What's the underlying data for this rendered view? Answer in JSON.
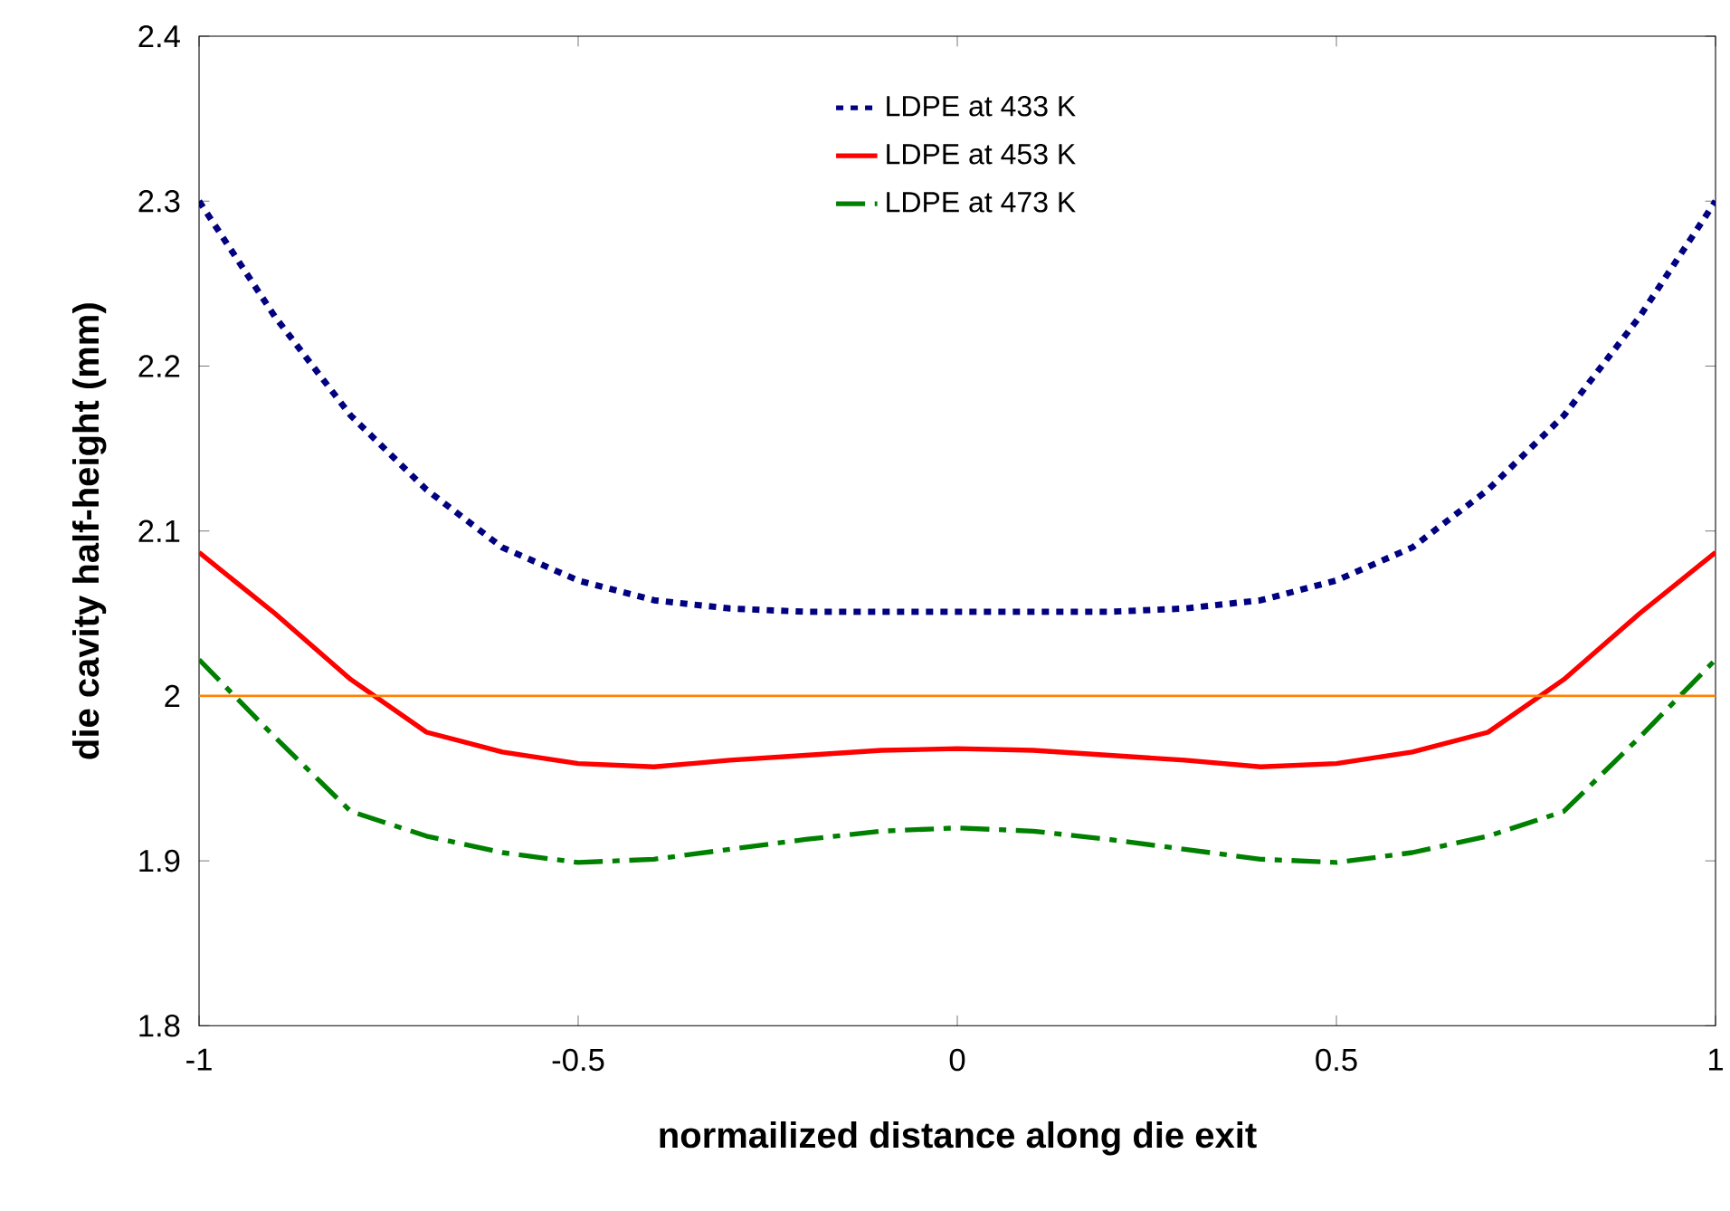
{
  "chart_data": {
    "type": "line",
    "xlabel": "normailized distance along die exit",
    "ylabel": "die cavity half-height (mm)",
    "xlim": [
      -1,
      1
    ],
    "xticks": [
      -1,
      -0.5,
      0,
      0.5,
      1
    ],
    "ylim": [
      1.8,
      2.4
    ],
    "yticks": [
      1.8,
      1.9,
      2,
      2.1,
      2.2,
      2.3,
      2.4
    ],
    "x": [
      -1,
      -0.9,
      -0.8,
      -0.7,
      -0.6,
      -0.5,
      -0.4,
      -0.3,
      -0.2,
      -0.1,
      0,
      0.1,
      0.2,
      0.3,
      0.4,
      0.5,
      0.6,
      0.7,
      0.8,
      0.9,
      1
    ],
    "series": [
      {
        "name": "LDPE at 433 K",
        "color": "#000080",
        "line_style": "dotted",
        "values": [
          2.3,
          2.23,
          2.17,
          2.125,
          2.09,
          2.07,
          2.058,
          2.053,
          2.051,
          2.051,
          2.051,
          2.051,
          2.051,
          2.053,
          2.058,
          2.07,
          2.09,
          2.125,
          2.17,
          2.23,
          2.3
        ]
      },
      {
        "name": "LDPE at 453 K",
        "color": "#ff0000",
        "line_style": "solid",
        "values": [
          2.087,
          2.05,
          2.01,
          1.978,
          1.966,
          1.959,
          1.957,
          1.961,
          1.964,
          1.967,
          1.968,
          1.967,
          1.964,
          1.961,
          1.957,
          1.959,
          1.966,
          1.978,
          2.01,
          2.05,
          2.087
        ]
      },
      {
        "name": "LDPE at 473 K",
        "color": "#008000",
        "line_style": "dashed",
        "values": [
          2.022,
          1.975,
          1.93,
          1.915,
          1.905,
          1.899,
          1.901,
          1.907,
          1.913,
          1.918,
          1.92,
          1.918,
          1.913,
          1.907,
          1.901,
          1.899,
          1.905,
          1.915,
          1.93,
          1.975,
          2.022
        ]
      }
    ],
    "ref_lines": [
      {
        "axis": "y",
        "value": 2,
        "color": "#ff8000"
      }
    ],
    "grid": false,
    "legend": "top",
    "marker": "none"
  }
}
